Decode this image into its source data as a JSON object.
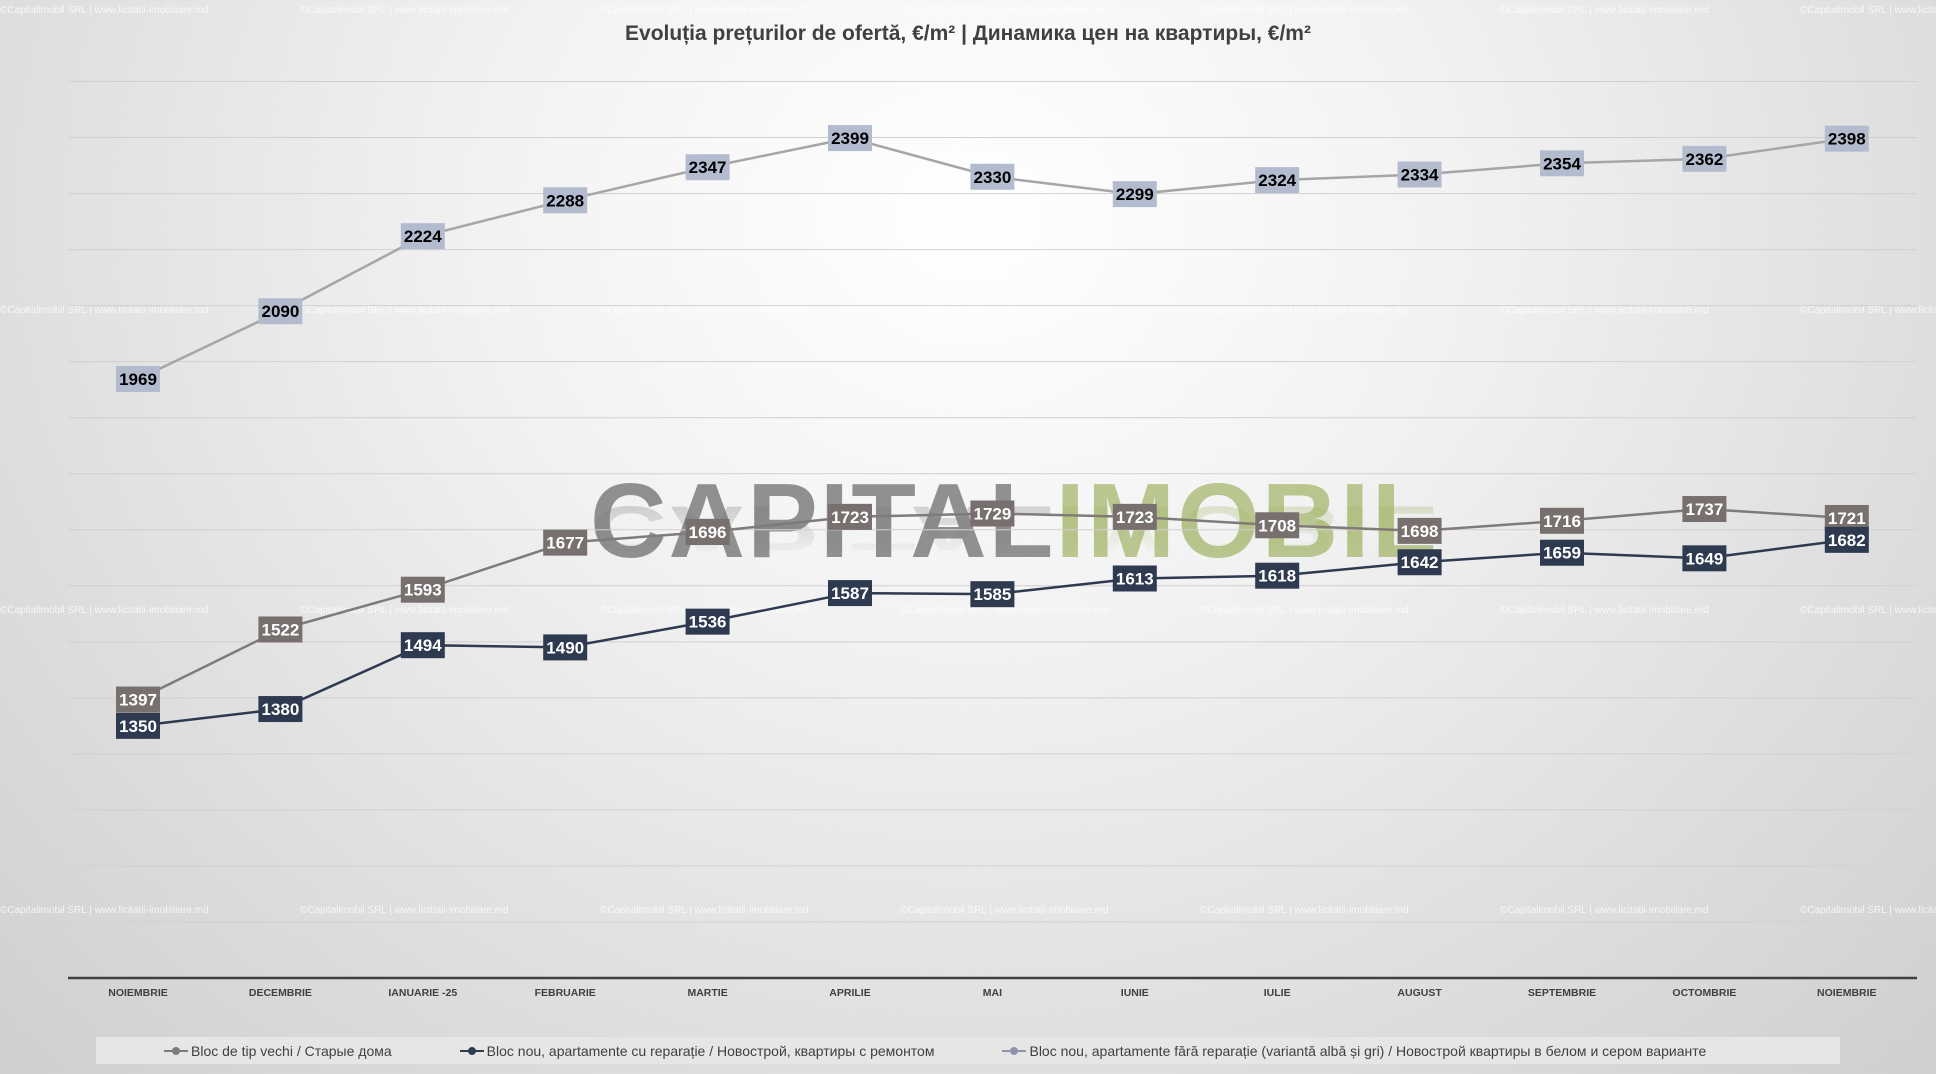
{
  "watermark": "©Capitalimobil SRL | www.licitatii-imobiliare.md",
  "logo": {
    "part1": "CAPITAL",
    "part2": "IMOBIL"
  },
  "chart_data": {
    "type": "line",
    "title": "Evoluția prețurilor de ofertă, €/m²  |  Динамика цен на квартиры, €/m²",
    "categories": [
      "NOIEMBRIE",
      "DECEMBRIE",
      "IANUARIE -25",
      "FEBRUARIE",
      "MARTIE",
      "APRILIE",
      "MAI",
      "IUNIE",
      "IULIE",
      "AUGUST",
      "SEPTEMBRIE",
      "OCTOMBRIE",
      "NOIEMBRIE"
    ],
    "ylim": [
      900,
      2500
    ],
    "grid": true,
    "legend_position": "bottom",
    "series": [
      {
        "name": "Bloc de tip vechi / Старые дома",
        "color": "#807a78",
        "label_bg": "#77706e",
        "label_color": "#ffffff",
        "values": [
          1397,
          1522,
          1593,
          1677,
          1696,
          1723,
          1729,
          1723,
          1708,
          1698,
          1716,
          1737,
          1721
        ]
      },
      {
        "name": "Bloc nou, apartamente cu reparație / Новострой, квартиры с ремонтом",
        "color": "#2e3a50",
        "label_bg": "#2e3a50",
        "label_color": "#ffffff",
        "values": [
          1350,
          1380,
          1494,
          1490,
          1536,
          1587,
          1585,
          1613,
          1618,
          1642,
          1659,
          1649,
          1682
        ]
      },
      {
        "name": "Bloc nou, apartamente fără reparație (variantă albă și gri) / Новострой квартиры в белом и сером варианте",
        "color": "#a6a6a6",
        "label_bg": "#b3bccf",
        "label_color": "#000000",
        "values": [
          1969,
          2090,
          2224,
          2288,
          2347,
          2399,
          2330,
          2299,
          2324,
          2334,
          2354,
          2362,
          2398
        ]
      }
    ]
  }
}
